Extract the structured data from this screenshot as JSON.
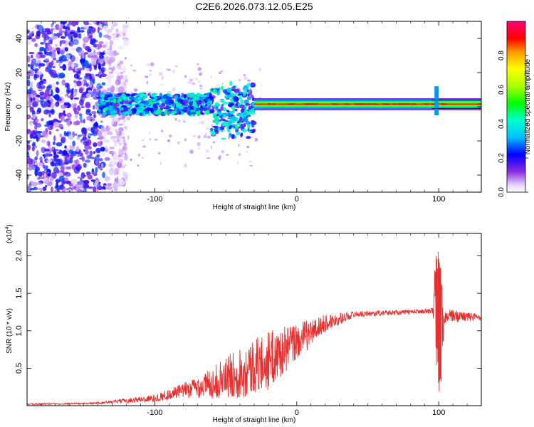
{
  "chart_data": [
    {
      "type": "heatmap",
      "title": "C2E6.2026.073.12.05.E25",
      "xlabel": "Height of straight line (km)",
      "ylabel": "Frequency (Hz)",
      "xlim": [
        -190,
        130
      ],
      "ylim": [
        -50,
        50
      ],
      "xticks": [
        -100,
        0,
        100
      ],
      "yticks": [
        -40,
        -20,
        0,
        20,
        40
      ],
      "xtick_labels": [
        "-100",
        "0",
        "100"
      ],
      "ytick_labels": [
        "-40",
        "-20",
        "0",
        "20",
        "40"
      ],
      "colorbar": {
        "label": "Normalized spectral amplitude",
        "range": [
          0,
          1
        ],
        "ticks": [
          0.0,
          0.2,
          0.4,
          0.6,
          0.8
        ],
        "tick_labels": [
          "0.0",
          "0.2",
          "0.4",
          "0.6",
          "0.8"
        ],
        "colormap": "rainbow"
      },
      "bands": [
        {
          "name": "noise-scatter",
          "x": [
            -190,
            -135
          ],
          "freq": [
            -50,
            50
          ],
          "amplitude": 0.15
        },
        {
          "name": "noisy-carrier",
          "x": [
            -140,
            -30
          ],
          "freq_center": 1.5,
          "freq_halfwidth": 6,
          "amplitude": 0.3
        },
        {
          "name": "clean-carrier",
          "x": [
            -30,
            130
          ],
          "freq_center": 1.5,
          "freq_halfwidth": 1.5,
          "amplitude": 0.85
        },
        {
          "name": "spike",
          "x": [
            97,
            100
          ],
          "freq": [
            -5,
            12
          ],
          "amplitude": 0.3
        }
      ]
    },
    {
      "type": "line",
      "title": "",
      "xlabel": "Height of straight line (km)",
      "ylabel": "SNR (10 * v/v)",
      "y_scale_label": "(x10",
      "y_scale_exp": "4",
      "y_scale_close": ")",
      "xlim": [
        -190,
        130
      ],
      "ylim": [
        0,
        2.3
      ],
      "xticks": [
        -100,
        0,
        100
      ],
      "yticks": [
        0.5,
        1.0,
        1.5,
        2.0
      ],
      "xtick_labels": [
        "-100",
        "0",
        "100"
      ],
      "ytick_labels": [
        "0.5",
        "1.0",
        "1.5",
        "2.0"
      ],
      "series": [
        {
          "name": "SNR",
          "color": "#e83030",
          "envelope": [
            {
              "x": -190,
              "y": 0.02,
              "noise": 0.01
            },
            {
              "x": -145,
              "y": 0.03,
              "noise": 0.01
            },
            {
              "x": -130,
              "y": 0.05,
              "noise": 0.02
            },
            {
              "x": -100,
              "y": 0.1,
              "noise": 0.05
            },
            {
              "x": -80,
              "y": 0.2,
              "noise": 0.1
            },
            {
              "x": -60,
              "y": 0.3,
              "noise": 0.2
            },
            {
              "x": -40,
              "y": 0.45,
              "noise": 0.35
            },
            {
              "x": -20,
              "y": 0.6,
              "noise": 0.4
            },
            {
              "x": 0,
              "y": 0.85,
              "noise": 0.25
            },
            {
              "x": 20,
              "y": 1.1,
              "noise": 0.12
            },
            {
              "x": 40,
              "y": 1.22,
              "noise": 0.04
            },
            {
              "x": 90,
              "y": 1.26,
              "noise": 0.03
            },
            {
              "x": 96,
              "y": 1.26,
              "noise": 0.05
            },
            {
              "x": 98,
              "y": 1.4,
              "noise": 0.8
            },
            {
              "x": 101,
              "y": 1.0,
              "noise": 0.9
            },
            {
              "x": 104,
              "y": 1.2,
              "noise": 0.1
            },
            {
              "x": 130,
              "y": 1.18,
              "noise": 0.04
            }
          ]
        }
      ]
    }
  ]
}
